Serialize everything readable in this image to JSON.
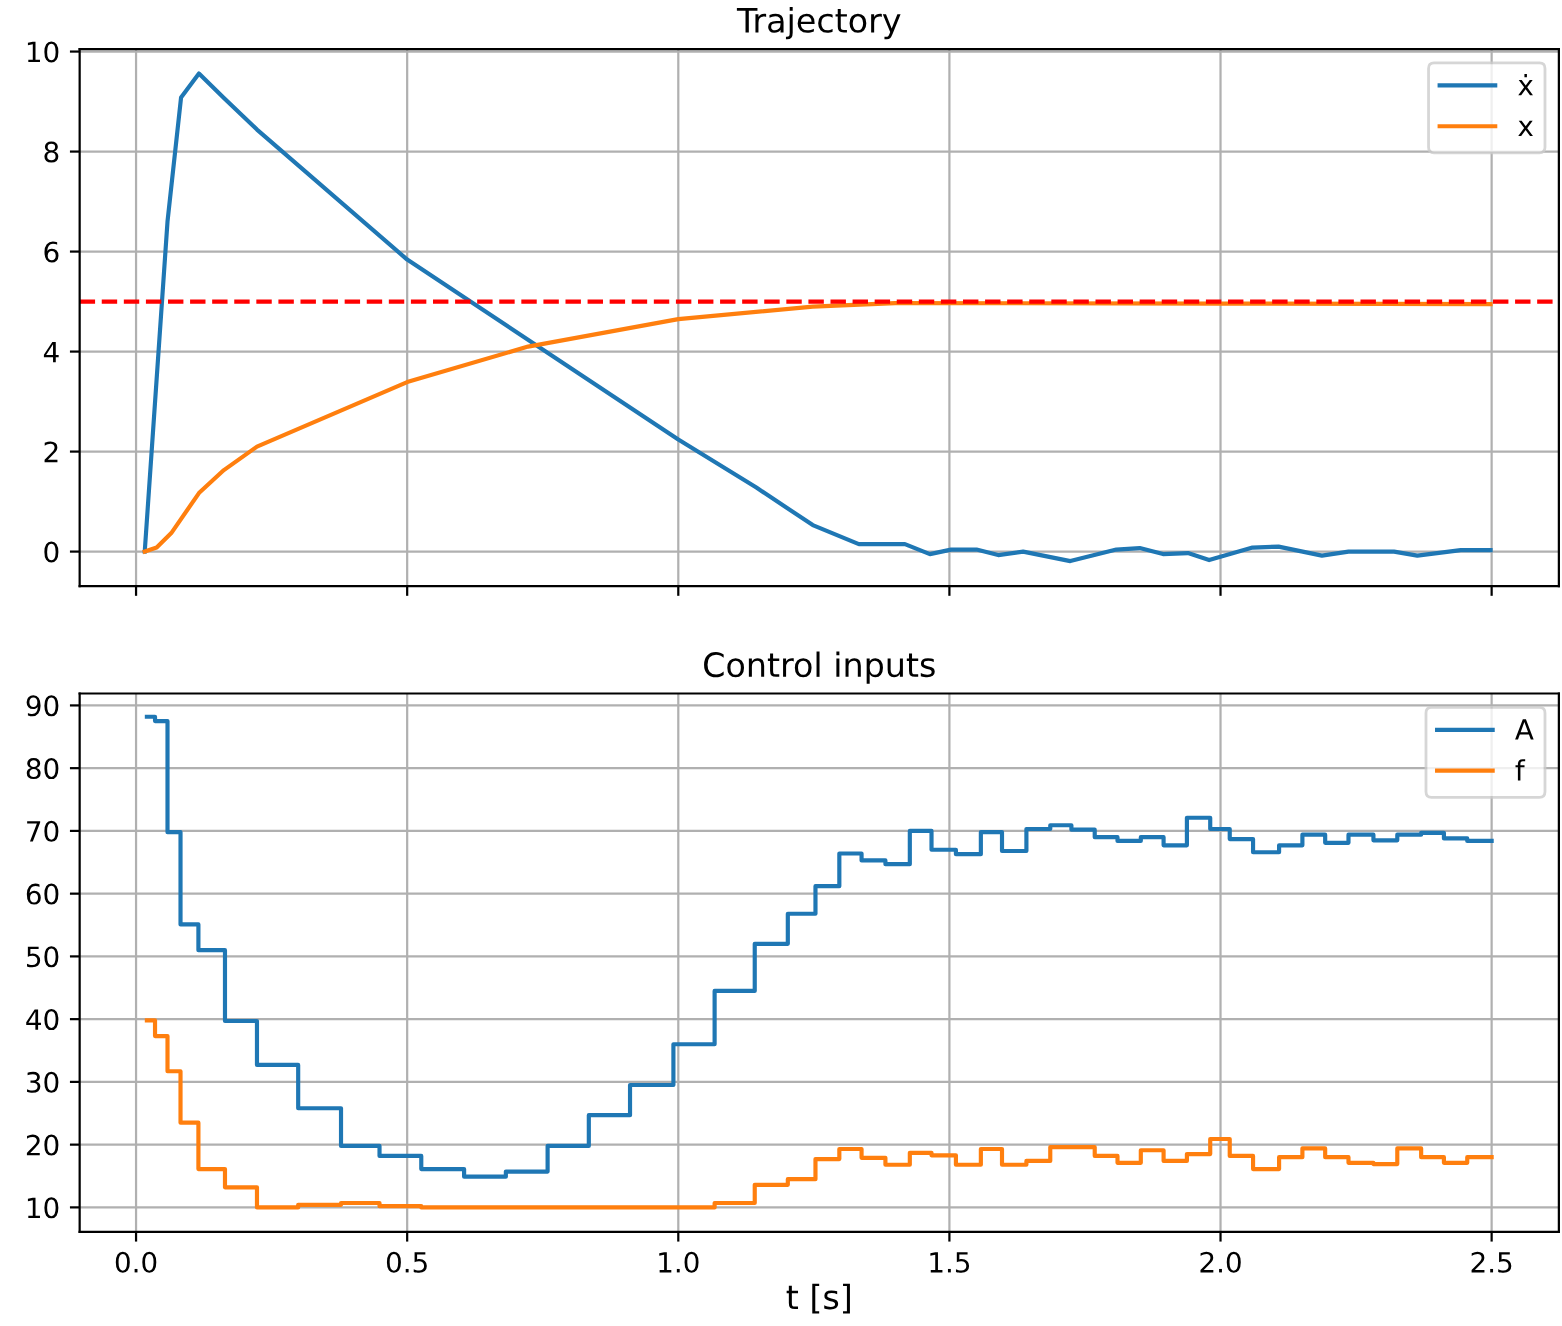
{
  "chart_data": [
    {
      "type": "line",
      "title": "Trajectory",
      "xlim": [
        -0.104,
        2.624
      ],
      "ylim": [
        -0.69,
        10.05
      ],
      "xticks": [
        0,
        0.5,
        1.0,
        1.5,
        2.0,
        2.5
      ],
      "yticks": [
        0,
        2,
        4,
        6,
        8,
        10
      ],
      "grid": true,
      "legend": "top right",
      "tick_labels": "y",
      "ref_lines": [
        {
          "axis": "y",
          "value": 5,
          "color": "#ff0000",
          "line_style": "dashed"
        }
      ],
      "series": [
        {
          "name": "ẋ",
          "color": "#1f77b4",
          "x": [
            0.016,
            0.058,
            0.083,
            0.116,
            0.162,
            0.223,
            0.5,
            1.0,
            1.144,
            1.248,
            1.333,
            1.418,
            1.464,
            1.503,
            1.55,
            1.59,
            1.636,
            1.723,
            1.808,
            1.851,
            1.894,
            1.94,
            1.979,
            2.059,
            2.107,
            2.187,
            2.236,
            2.32,
            2.363,
            2.443,
            2.498
          ],
          "values": [
            0,
            6.6,
            9.08,
            9.56,
            9.07,
            8.44,
            5.84,
            2.24,
            1.28,
            0.53,
            0.15,
            0.15,
            -0.05,
            0.04,
            0.04,
            -0.07,
            0,
            -0.19,
            0.04,
            0.07,
            -0.05,
            -0.03,
            -0.17,
            0.08,
            0.1,
            -0.08,
            0,
            0,
            -0.08,
            0.03,
            0.03
          ]
        },
        {
          "name": "x",
          "color": "#ff7f0e",
          "x": [
            0.016,
            0.038,
            0.065,
            0.116,
            0.162,
            0.223,
            0.5,
            0.723,
            1.0,
            1.248,
            1.4,
            2.0,
            2.498
          ],
          "values": [
            0,
            0.08,
            0.37,
            1.17,
            1.63,
            2.1,
            3.39,
            4.1,
            4.65,
            4.9,
            4.97,
            4.96,
            4.95
          ]
        }
      ]
    },
    {
      "type": "step",
      "title": "Control inputs",
      "xlabel": "t [s]",
      "xlim": [
        -0.104,
        2.624
      ],
      "ylim": [
        6.1,
        91.9
      ],
      "xticks": [
        {
          "value": 0,
          "label": "0.0"
        },
        0.5,
        {
          "value": 1,
          "label": "1.0"
        },
        1.5,
        {
          "value": 2,
          "label": "2.0"
        },
        2.5
      ],
      "yticks": [
        10,
        20,
        30,
        40,
        50,
        60,
        70,
        80,
        90
      ],
      "grid": true,
      "legend": "top right",
      "x": [
        0.02,
        0.035,
        0.058,
        0.082,
        0.115,
        0.164,
        0.223,
        0.299,
        0.378,
        0.449,
        0.526,
        0.605,
        0.682,
        0.759,
        0.835,
        0.911,
        0.991,
        1.067,
        1.141,
        1.202,
        1.253,
        1.297,
        1.338,
        1.382,
        1.427,
        1.467,
        1.512,
        1.558,
        1.597,
        1.642,
        1.686,
        1.725,
        1.768,
        1.81,
        1.853,
        1.895,
        1.938,
        1.981,
        2.017,
        2.06,
        2.108,
        2.151,
        2.193,
        2.236,
        2.282,
        2.326,
        2.37,
        2.412,
        2.455,
        2.5
      ],
      "series": [
        {
          "name": "A",
          "color": "#1f77b4",
          "values": [
            88.2,
            87.5,
            69.8,
            55.1,
            51.0,
            39.7,
            32.7,
            25.8,
            19.8,
            18.2,
            16.1,
            14.9,
            15.7,
            19.8,
            24.7,
            29.5,
            36.0,
            44.5,
            52.0,
            56.8,
            61.2,
            66.4,
            65.3,
            64.7,
            70.0,
            67.0,
            66.3,
            69.8,
            66.8,
            70.3,
            70.9,
            70.2,
            69.0,
            68.4,
            69.0,
            67.7,
            72.1,
            70.3,
            68.7,
            66.6,
            67.7,
            69.4,
            68.1,
            69.4,
            68.5,
            69.4,
            69.7,
            68.8,
            68.4,
            68.4
          ]
        },
        {
          "name": "f",
          "color": "#ff7f0e",
          "values": [
            39.8,
            37.3,
            31.7,
            23.5,
            16.1,
            13.2,
            10.0,
            10.4,
            10.7,
            10.2,
            10.0,
            10.0,
            10.0,
            10.0,
            10.0,
            10.0,
            10.0,
            10.7,
            13.6,
            14.5,
            17.7,
            19.3,
            17.9,
            16.8,
            18.7,
            18.3,
            16.8,
            19.3,
            16.8,
            17.4,
            19.6,
            19.6,
            18.2,
            17.1,
            19.1,
            17.4,
            18.5,
            20.9,
            18.2,
            16.1,
            18.0,
            19.4,
            18.0,
            17.1,
            16.9,
            19.4,
            18.0,
            17.1,
            18.0,
            18.0
          ]
        }
      ]
    }
  ]
}
